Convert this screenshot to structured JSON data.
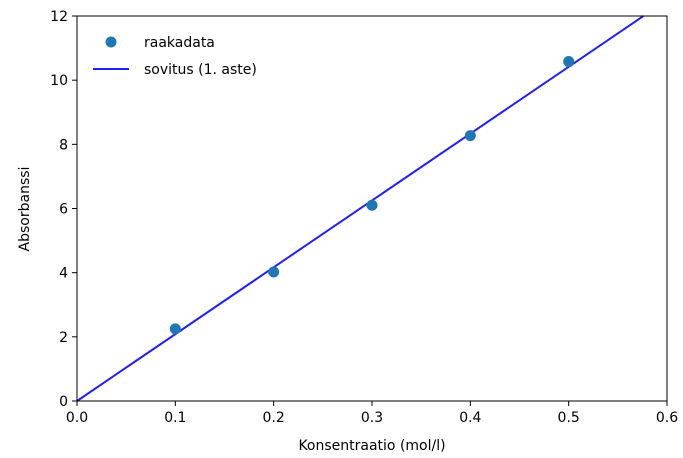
{
  "chart_data": {
    "type": "scatter",
    "title": "",
    "xlabel": "Konsentraatio (mol/l)",
    "ylabel": "Absorbanssi",
    "xlim": [
      0.0,
      0.6
    ],
    "ylim": [
      0,
      12
    ],
    "xticks": [
      "0.0",
      "0.1",
      "0.2",
      "0.3",
      "0.4",
      "0.5",
      "0.6"
    ],
    "yticks": [
      "0",
      "2",
      "4",
      "6",
      "8",
      "10",
      "12"
    ],
    "grid": false,
    "legend_position": "upper-left",
    "series": [
      {
        "name": "raakadata",
        "kind": "scatter",
        "color": "#1f77b4",
        "x": [
          0.1,
          0.2,
          0.3,
          0.4,
          0.5
        ],
        "y": [
          2.25,
          4.02,
          6.1,
          8.27,
          10.58
        ]
      },
      {
        "name": "sovitus (1. aste)",
        "kind": "line",
        "color": "#1f1fff",
        "x": [
          0.0,
          0.576
        ],
        "y": [
          0.0,
          12.0
        ]
      }
    ]
  }
}
